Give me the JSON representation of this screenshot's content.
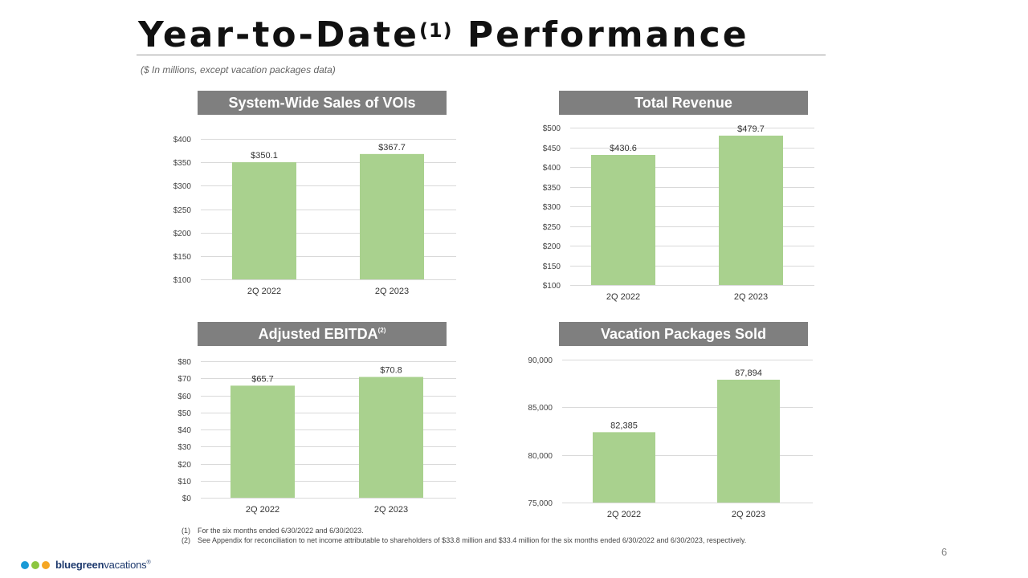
{
  "page": {
    "title": "Year-to-Date",
    "title_sup": "(1)",
    "title_end": "Performance",
    "subtitle": "($ In millions, except vacation packages data)",
    "page_number": "6"
  },
  "footnotes": [
    {
      "num": "(1)",
      "text": "For the six months ended 6/30/2022 and 6/30/2023."
    },
    {
      "num": "(2)",
      "text": "See Appendix for reconciliation to net income attributable to shareholders of $33.8 million  and $33.4 million  for the six months  ended 6/30/2022 and 6/30/2023, respectively."
    }
  ],
  "logo": {
    "brand_bold": "bluegreen",
    "brand_rest": "vacations",
    "mark": "®",
    "colors": [
      "#1a9ad6",
      "#8cc63f",
      "#f5a623"
    ]
  },
  "colors": {
    "bar": "#a9d18e",
    "header_bg": "#7f7f7f",
    "grid": "#d9d9d9"
  },
  "chart_data": [
    {
      "id": "sales",
      "type": "bar",
      "title": "System-Wide Sales of  VOIs",
      "title_sup": "",
      "categories": [
        "2Q 2022",
        "2Q 2023"
      ],
      "values": [
        350.1,
        367.7
      ],
      "labels": [
        "$350.1",
        "$367.7"
      ],
      "ylim": [
        100,
        400
      ],
      "ticks": [
        100,
        150,
        200,
        250,
        300,
        350,
        400
      ],
      "tick_labels": [
        "$100",
        "$150",
        "$200",
        "$250",
        "$300",
        "$350",
        "$400"
      ],
      "xlabel": "",
      "ylabel": ""
    },
    {
      "id": "revenue",
      "type": "bar",
      "title": "Total Revenue",
      "title_sup": "",
      "categories": [
        "2Q 2022",
        "2Q 2023"
      ],
      "values": [
        430.6,
        479.7
      ],
      "labels": [
        "$430.6",
        "$479.7"
      ],
      "ylim": [
        100,
        500
      ],
      "ticks": [
        100,
        150,
        200,
        250,
        300,
        350,
        400,
        450,
        500
      ],
      "tick_labels": [
        "$100",
        "$150",
        "$200",
        "$250",
        "$300",
        "$350",
        "$400",
        "$450",
        "$500"
      ],
      "xlabel": "",
      "ylabel": ""
    },
    {
      "id": "ebitda",
      "type": "bar",
      "title": "Adjusted EBITDA",
      "title_sup": "(2)",
      "categories": [
        "2Q 2022",
        "2Q 2023"
      ],
      "values": [
        65.7,
        70.8
      ],
      "labels": [
        "$65.7",
        "$70.8"
      ],
      "ylim": [
        0,
        80
      ],
      "ticks": [
        0,
        10,
        20,
        30,
        40,
        50,
        60,
        70,
        80
      ],
      "tick_labels": [
        "$0",
        "$10",
        "$20",
        "$30",
        "$40",
        "$50",
        "$60",
        "$70",
        "$80"
      ],
      "xlabel": "",
      "ylabel": ""
    },
    {
      "id": "packages",
      "type": "bar",
      "title": "Vacation Packages Sold",
      "title_sup": "",
      "categories": [
        "2Q 2022",
        "2Q 2023"
      ],
      "values": [
        82385,
        87894
      ],
      "labels": [
        "82,385",
        "87,894"
      ],
      "ylim": [
        75000,
        90000
      ],
      "ticks": [
        75000,
        80000,
        85000,
        90000
      ],
      "tick_labels": [
        "75,000",
        "80,000",
        "85,000",
        "90,000"
      ],
      "xlabel": "",
      "ylabel": ""
    }
  ]
}
